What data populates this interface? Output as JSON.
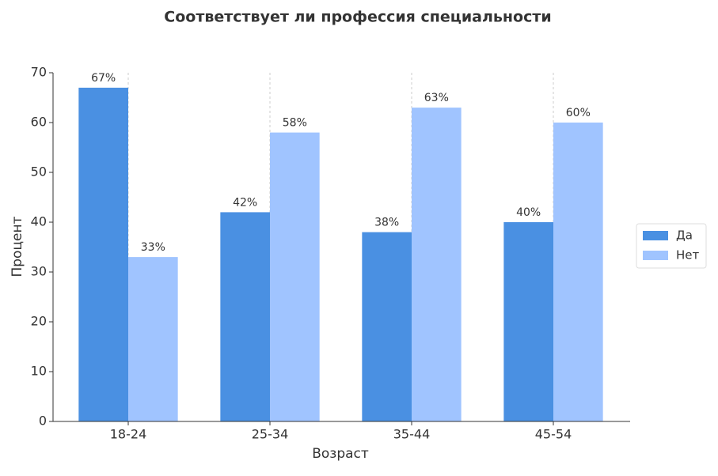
{
  "chart_data": {
    "type": "bar",
    "title": "Соответствует ли профессия специальности",
    "x_label": "Возраст",
    "y_label": "Процент",
    "categories": [
      "18-24",
      "25-34",
      "35-44",
      "45-54"
    ],
    "series": [
      {
        "name": "Да",
        "color": "#4a90e2",
        "values": [
          67,
          42,
          38,
          40
        ],
        "value_labels": [
          "67%",
          "42%",
          "38%",
          "40%"
        ]
      },
      {
        "name": "Нет",
        "color": "#a0c4ff",
        "values": [
          33,
          58,
          63,
          60
        ],
        "value_labels": [
          "33%",
          "58%",
          "63%",
          "60%"
        ]
      }
    ],
    "ylim": [
      0,
      70
    ],
    "yticks": [
      0,
      10,
      20,
      30,
      40,
      50,
      60,
      70
    ],
    "xgrid": true,
    "legend": "right"
  }
}
